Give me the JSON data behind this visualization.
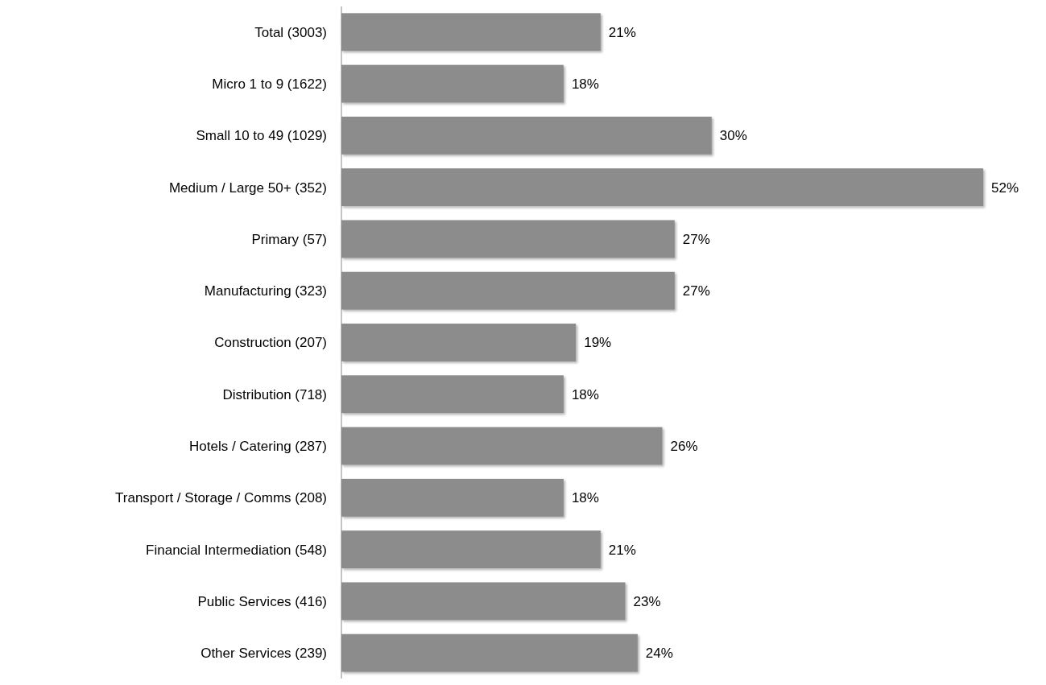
{
  "chart_data": {
    "type": "bar",
    "orientation": "horizontal",
    "categories": [
      "Total (3003)",
      "Micro 1 to 9 (1622)",
      "Small 10 to 49 (1029)",
      "Medium / Large 50+ (352)",
      "Primary  (57)",
      "Manufacturing (323)",
      "Construction (207)",
      "Distribution  (718)",
      "Hotels / Catering  (287)",
      "Transport / Storage / Comms  (208)",
      "Financial Intermediation  (548)",
      "Public Services  (416)",
      "Other Services  (239)"
    ],
    "values": [
      21,
      18,
      30,
      52,
      27,
      27,
      19,
      18,
      26,
      18,
      21,
      23,
      24
    ],
    "value_labels": [
      "21%",
      "18%",
      "30%",
      "52%",
      "27%",
      "27%",
      "19%",
      "18%",
      "26%",
      "18%",
      "21%",
      "23%",
      "24%"
    ],
    "color": "#8c8c8c"
  }
}
